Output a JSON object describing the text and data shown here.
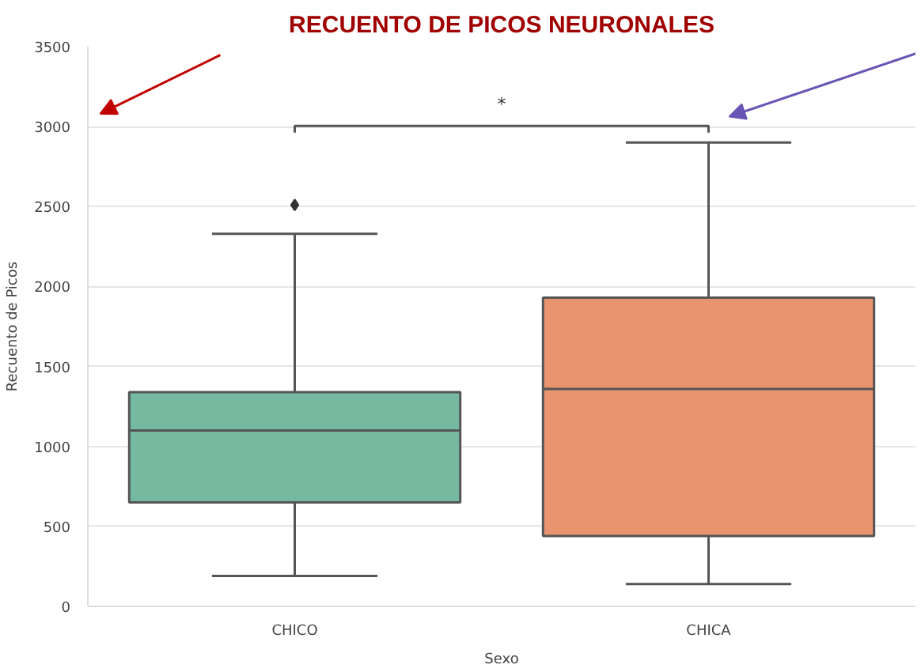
{
  "chart_data": {
    "type": "box",
    "title": "RECUENTO DE PICOS NEURONALES",
    "xlabel": "Sexo",
    "ylabel": "Recuento de Picos",
    "categories": [
      "CHICO",
      "CHICA"
    ],
    "colors": [
      "#74b9a0",
      "#e8956f"
    ],
    "boxes": [
      {
        "low": 190,
        "q1": 650,
        "median": 1100,
        "q3": 1340,
        "high": 2330,
        "outliers": [
          2510
        ]
      },
      {
        "low": 140,
        "q1": 440,
        "median": 1360,
        "q3": 1930,
        "high": 2900
      }
    ],
    "ylim": [
      0,
      3500
    ],
    "yticks": [
      0,
      500,
      1000,
      1500,
      2000,
      2500,
      3000,
      3500
    ],
    "grid": "y",
    "annotations": [
      "*"
    ]
  }
}
